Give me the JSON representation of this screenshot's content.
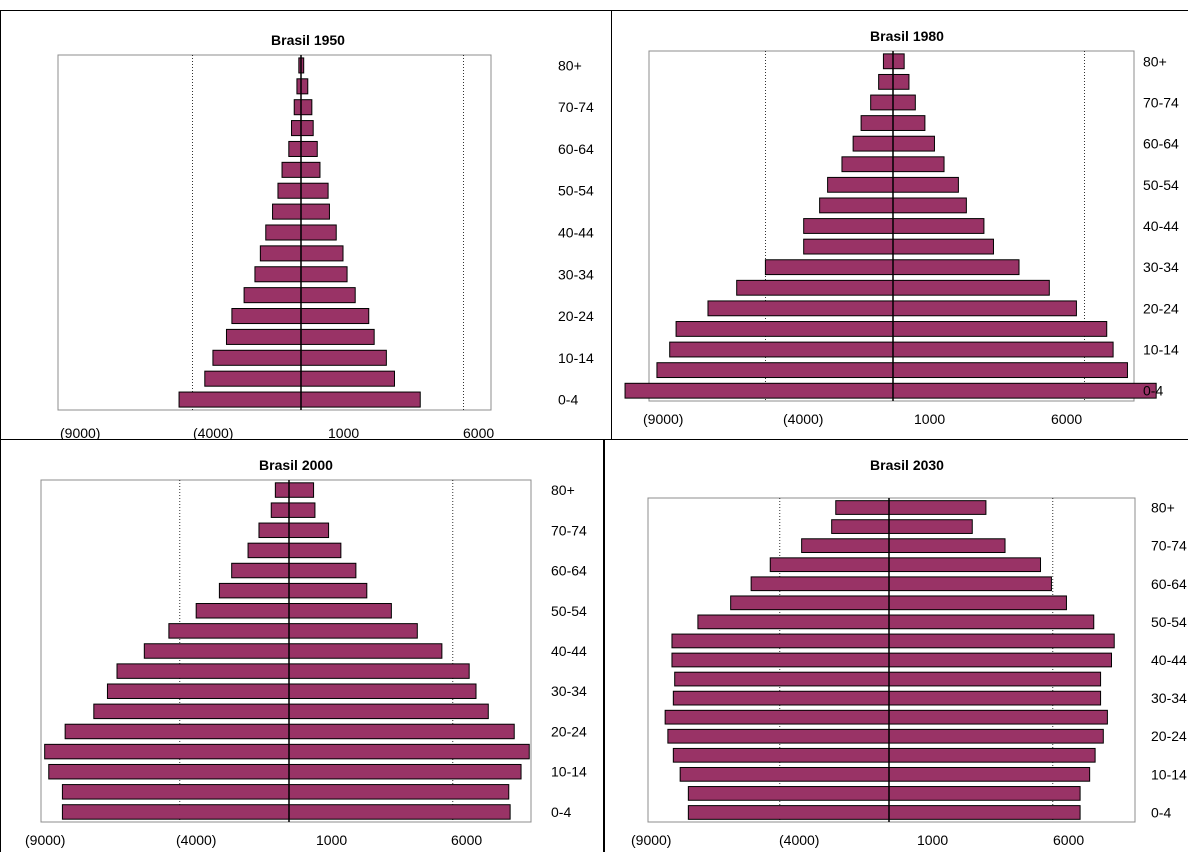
{
  "chart_data": [
    {
      "type": "bar",
      "title": "Brasil 1950",
      "age_groups": [
        "0-4",
        "5-9",
        "10-14",
        "15-19",
        "20-24",
        "25-29",
        "30-34",
        "35-39",
        "40-44",
        "45-49",
        "50-54",
        "55-59",
        "60-64",
        "65-69",
        "70-74",
        "75-79",
        "80+"
      ],
      "y_tick_labels": [
        "0-4",
        "10-14",
        "20-24",
        "30-34",
        "40-44",
        "50-54",
        "60-64",
        "70-74",
        "80+"
      ],
      "x_tick_labels": [
        "(9000)",
        "(4000)",
        "1000",
        "6000"
      ],
      "xlim": [
        -9000,
        9000
      ],
      "series": [
        {
          "values": [
            -4500,
            -3550,
            -3250,
            -2750,
            -2550,
            -2100,
            -1700,
            -1500,
            -1300,
            -1050,
            -850,
            -700,
            -450,
            -350,
            -250,
            -150,
            -80
          ]
        },
        {
          "values": [
            4400,
            3450,
            3150,
            2700,
            2500,
            2000,
            1700,
            1550,
            1300,
            1050,
            1000,
            700,
            600,
            450,
            400,
            250,
            100
          ]
        }
      ],
      "grid": true
    },
    {
      "type": "bar",
      "title": "Brasil 1980",
      "age_groups": [
        "0-4",
        "5-9",
        "10-14",
        "15-19",
        "20-24",
        "25-29",
        "30-34",
        "35-39",
        "40-44",
        "45-49",
        "50-54",
        "55-59",
        "60-64",
        "65-69",
        "70-74",
        "75-79",
        "80+"
      ],
      "y_tick_labels": [
        "0-4",
        "10-14",
        "20-24",
        "30-34",
        "40-44",
        "50-54",
        "60-64",
        "70-74",
        "80+"
      ],
      "x_tick_labels": [
        "(9000)",
        "(4000)",
        "1000",
        "6000"
      ],
      "xlim": [
        -9000,
        9000
      ],
      "series": [
        {
          "values": [
            -8400,
            -7400,
            -7000,
            -6800,
            -5800,
            -4900,
            -4000,
            -2800,
            -2800,
            -2300,
            -2050,
            -1600,
            -1250,
            -1000,
            -700,
            -450,
            -300
          ]
        },
        {
          "values": [
            8250,
            7350,
            6900,
            6700,
            5750,
            4900,
            3950,
            3150,
            2850,
            2300,
            2050,
            1600,
            1300,
            1000,
            700,
            500,
            350
          ]
        }
      ],
      "grid": true
    },
    {
      "type": "bar",
      "title": "Brasil 2000",
      "age_groups": [
        "0-4",
        "5-9",
        "10-14",
        "15-19",
        "20-24",
        "25-29",
        "30-34",
        "35-39",
        "40-44",
        "45-49",
        "50-54",
        "55-59",
        "60-64",
        "65-69",
        "70-74",
        "75-79",
        "80+"
      ],
      "y_tick_labels": [
        "0-4",
        "10-14",
        "20-24",
        "30-34",
        "40-44",
        "50-54",
        "60-64",
        "70-74",
        "80+"
      ],
      "x_tick_labels": [
        "(9000)",
        "(4000)",
        "1000",
        "6000"
      ],
      "xlim": [
        -9000,
        9000
      ],
      "series": [
        {
          "values": [
            -8300,
            -8300,
            -8800,
            -8950,
            -8200,
            -7150,
            -6650,
            -6300,
            -5300,
            -4400,
            -3400,
            -2550,
            -2100,
            -1500,
            -1100,
            -650,
            -500
          ]
        },
        {
          "values": [
            8100,
            8050,
            8500,
            8800,
            8250,
            7300,
            6850,
            6600,
            5600,
            4700,
            3750,
            2850,
            2450,
            1900,
            1450,
            950,
            900
          ]
        }
      ],
      "grid": true
    },
    {
      "type": "bar",
      "title": "Brasil 2030",
      "age_groups": [
        "0-4",
        "5-9",
        "10-14",
        "15-19",
        "20-24",
        "25-29",
        "30-34",
        "35-39",
        "40-44",
        "45-49",
        "50-54",
        "55-59",
        "60-64",
        "65-69",
        "70-74",
        "75-79",
        "80+"
      ],
      "y_tick_labels": [
        "0-4",
        "10-14",
        "20-24",
        "30-34",
        "40-44",
        "50-54",
        "60-64",
        "70-74",
        "80+"
      ],
      "x_tick_labels": [
        "(9000)",
        "(4000)",
        "1000",
        "6000"
      ],
      "xlim": [
        -9000,
        9000
      ],
      "series": [
        {
          "values": [
            -7350,
            -7350,
            -7650,
            -7900,
            -8100,
            -8200,
            -7900,
            -7850,
            -7950,
            -7950,
            -7000,
            -5800,
            -5050,
            -4350,
            -3200,
            -2100,
            -1950
          ]
        },
        {
          "values": [
            7000,
            7000,
            7350,
            7550,
            7850,
            8000,
            7750,
            7750,
            8150,
            8250,
            7500,
            6500,
            5950,
            5550,
            4250,
            3050,
            3550
          ]
        }
      ],
      "grid": true
    }
  ]
}
